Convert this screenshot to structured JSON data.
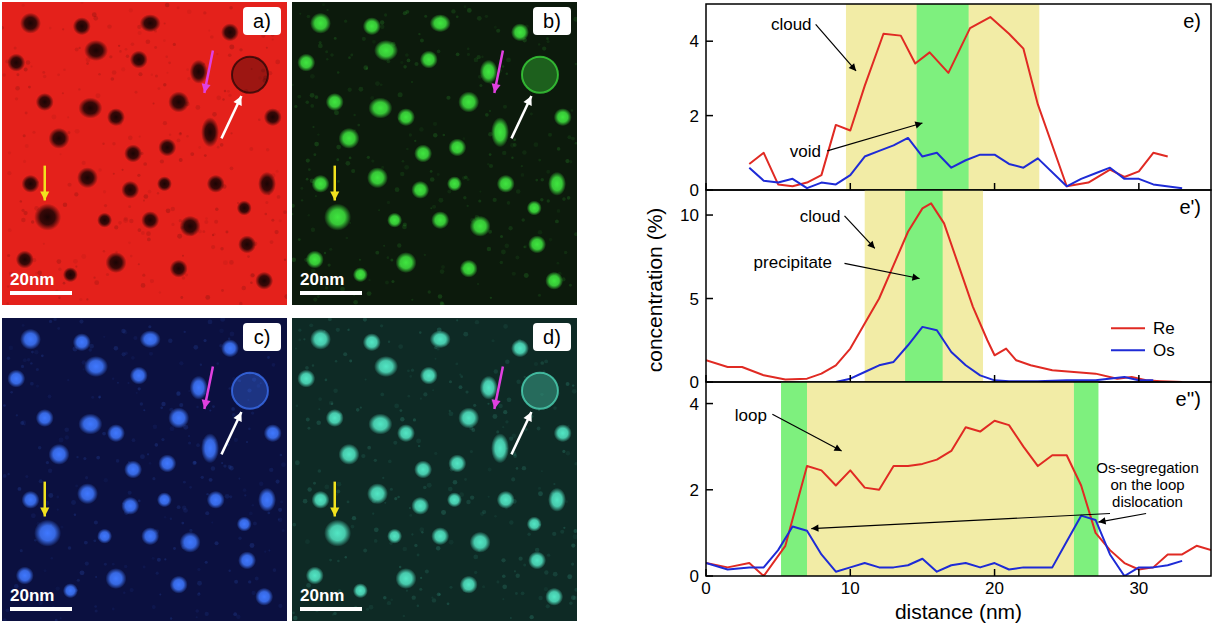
{
  "figure": {
    "y_label": "concentration (%)",
    "x_label": "distance (nm)"
  },
  "panels": [
    {
      "label": "a)",
      "scale_bar": "20nm",
      "background": "#e4211b",
      "particles": "#1a0404"
    },
    {
      "label": "b)",
      "scale_bar": "20nm",
      "background": "#0c1a0c",
      "particles": "#3fe63f"
    },
    {
      "label": "c)",
      "scale_bar": "20nm",
      "background": "#0b1040",
      "particles": "#3f78ff"
    },
    {
      "label": "d)",
      "scale_bar": "20nm",
      "background": "#0e2a25",
      "particles": "#52e6c4"
    }
  ],
  "chart_data": [
    {
      "type": "line",
      "title": "e)",
      "xlim": [
        0,
        35
      ],
      "xticks": [
        0,
        10,
        20,
        30
      ],
      "ylim": [
        0,
        5
      ],
      "yticks": [
        0,
        2,
        4
      ],
      "tick_labels": "y",
      "bands": [
        {
          "from": 9.7,
          "to": 23.1,
          "color": "#f2eca6"
        },
        {
          "from": 14.6,
          "to": 18.2,
          "color": "#7ef07e"
        }
      ],
      "annotations": [
        "cloud",
        "void"
      ],
      "series": [
        {
          "color": "#e02a23",
          "x": [
            3,
            4,
            5,
            6,
            7,
            8,
            9,
            10,
            11,
            12.3,
            13.5,
            14.5,
            15.5,
            16.8,
            18.3,
            19.7,
            21,
            22,
            23,
            25,
            26.5,
            28,
            29,
            30,
            31,
            32
          ],
          "values": [
            0.7,
            1.0,
            0.15,
            0.1,
            0.2,
            0.4,
            1.75,
            1.6,
            2.8,
            4.2,
            4.15,
            3.4,
            3.7,
            3.15,
            4.35,
            4.65,
            4.2,
            3.8,
            2.3,
            0.1,
            0.2,
            0.55,
            0.35,
            0.5,
            1.0,
            0.9
          ]
        },
        {
          "color": "#1e2bd6",
          "x": [
            3,
            4,
            5,
            6,
            7,
            8,
            9,
            10,
            11,
            12,
            13,
            14,
            15,
            16,
            17,
            18,
            19,
            20,
            21,
            22,
            23,
            25,
            26,
            27,
            28,
            29,
            30,
            31,
            33
          ],
          "values": [
            0.6,
            0.25,
            0.2,
            0.3,
            0.05,
            0.2,
            0.15,
            0.4,
            0.9,
            1.05,
            1.2,
            1.4,
            0.9,
            1.0,
            0.6,
            0.8,
            0.95,
            0.95,
            0.7,
            0.6,
            0.85,
            0.1,
            0.3,
            0.45,
            0.6,
            0.3,
            0.3,
            0.15,
            0.05
          ]
        }
      ]
    },
    {
      "type": "line",
      "title": "e')",
      "xlim": [
        0,
        35
      ],
      "xticks": [
        0,
        10,
        20,
        30
      ],
      "ylim": [
        0,
        11.5
      ],
      "yticks": [
        0,
        5,
        10
      ],
      "tick_labels": "y",
      "legend": "right",
      "bands": [
        {
          "from": 11,
          "to": 19.2,
          "color": "#f2eca6"
        },
        {
          "from": 13.8,
          "to": 16.4,
          "color": "#7ef07e"
        }
      ],
      "annotations": [
        "cloud",
        "precipitate"
      ],
      "series": [
        {
          "name": "Re",
          "color": "#e02a23",
          "x": [
            0,
            1.5,
            2.5,
            4,
            5.5,
            7,
            8,
            9,
            10,
            11,
            12,
            13,
            14,
            15,
            15.6,
            16.5,
            17.5,
            18.5,
            19.5,
            20,
            20.8,
            21.5,
            22.5,
            24,
            25.5,
            27,
            28.5,
            29.5,
            30.5,
            31.5,
            33
          ],
          "values": [
            1.3,
            0.9,
            0.9,
            0.4,
            0.15,
            0.2,
            0.5,
            1.0,
            2.0,
            3.5,
            5.0,
            7.0,
            9.0,
            10.4,
            10.7,
            9.5,
            7.0,
            4.5,
            2.5,
            1.6,
            2.0,
            1.3,
            1.0,
            0.7,
            0.6,
            0.5,
            0.2,
            0.3,
            0.1,
            0.05,
            0.0
          ]
        },
        {
          "name": "Os",
          "color": "#1e2bd6",
          "x": [
            9,
            10,
            11,
            12,
            13,
            14,
            15,
            16,
            17,
            18,
            19,
            20,
            21,
            23,
            25,
            27,
            29,
            30,
            31
          ],
          "values": [
            0.0,
            0.2,
            0.6,
            1.0,
            1.2,
            2.2,
            3.3,
            3.1,
            1.8,
            1.0,
            0.4,
            0.1,
            0.05,
            0.05,
            0.1,
            0.1,
            0.3,
            0.1,
            0.1
          ]
        }
      ]
    },
    {
      "type": "line",
      "title": "e'')",
      "xlim": [
        0,
        35
      ],
      "xticks": [
        0,
        10,
        20,
        30
      ],
      "ylim": [
        0,
        4.5
      ],
      "yticks": [
        0,
        2,
        4
      ],
      "bands": [
        {
          "from": 5.2,
          "to": 7,
          "color": "#7ef07e"
        },
        {
          "from": 7,
          "to": 25.5,
          "color": "#f2eca6"
        },
        {
          "from": 25.5,
          "to": 27.2,
          "color": "#7ef07e"
        }
      ],
      "annotations": [
        "loop",
        "Os-segregation on the loop dislocation"
      ],
      "series": [
        {
          "color": "#e02a23",
          "x": [
            0,
            1.5,
            3,
            4,
            5.5,
            7,
            8,
            9,
            10,
            11,
            12,
            13,
            14,
            15,
            16,
            17,
            18,
            19,
            20,
            21,
            22,
            23,
            24,
            25,
            26,
            27,
            28,
            29,
            30,
            31,
            32,
            33,
            34,
            35
          ],
          "values": [
            0.3,
            0.2,
            0.3,
            0.0,
            0.7,
            2.55,
            2.45,
            2.1,
            2.45,
            2.05,
            2.0,
            2.55,
            2.55,
            2.6,
            2.7,
            2.9,
            3.45,
            3.35,
            3.6,
            3.5,
            3.0,
            2.55,
            2.8,
            2.8,
            2.1,
            1.0,
            0.6,
            0.3,
            0.15,
            0.2,
            0.5,
            0.5,
            0.7,
            0.6
          ]
        },
        {
          "color": "#1e2bd6",
          "x": [
            0,
            1.5,
            3,
            4,
            5,
            6,
            7,
            8,
            9,
            10,
            11,
            12,
            13,
            14,
            15,
            16,
            17,
            18,
            19,
            20,
            21,
            22,
            23,
            24,
            25,
            26,
            27,
            28,
            29,
            30,
            31,
            32,
            33
          ],
          "values": [
            0.3,
            0.15,
            0.2,
            0.2,
            0.6,
            1.15,
            1.05,
            0.5,
            0.1,
            0.2,
            0.3,
            0.2,
            0.2,
            0.25,
            0.4,
            0.1,
            0.25,
            0.3,
            0.2,
            0.3,
            0.15,
            0.2,
            0.2,
            0.2,
            0.8,
            1.4,
            1.3,
            0.5,
            0.0,
            0.2,
            0.2,
            0.25,
            0.35
          ]
        }
      ]
    }
  ]
}
